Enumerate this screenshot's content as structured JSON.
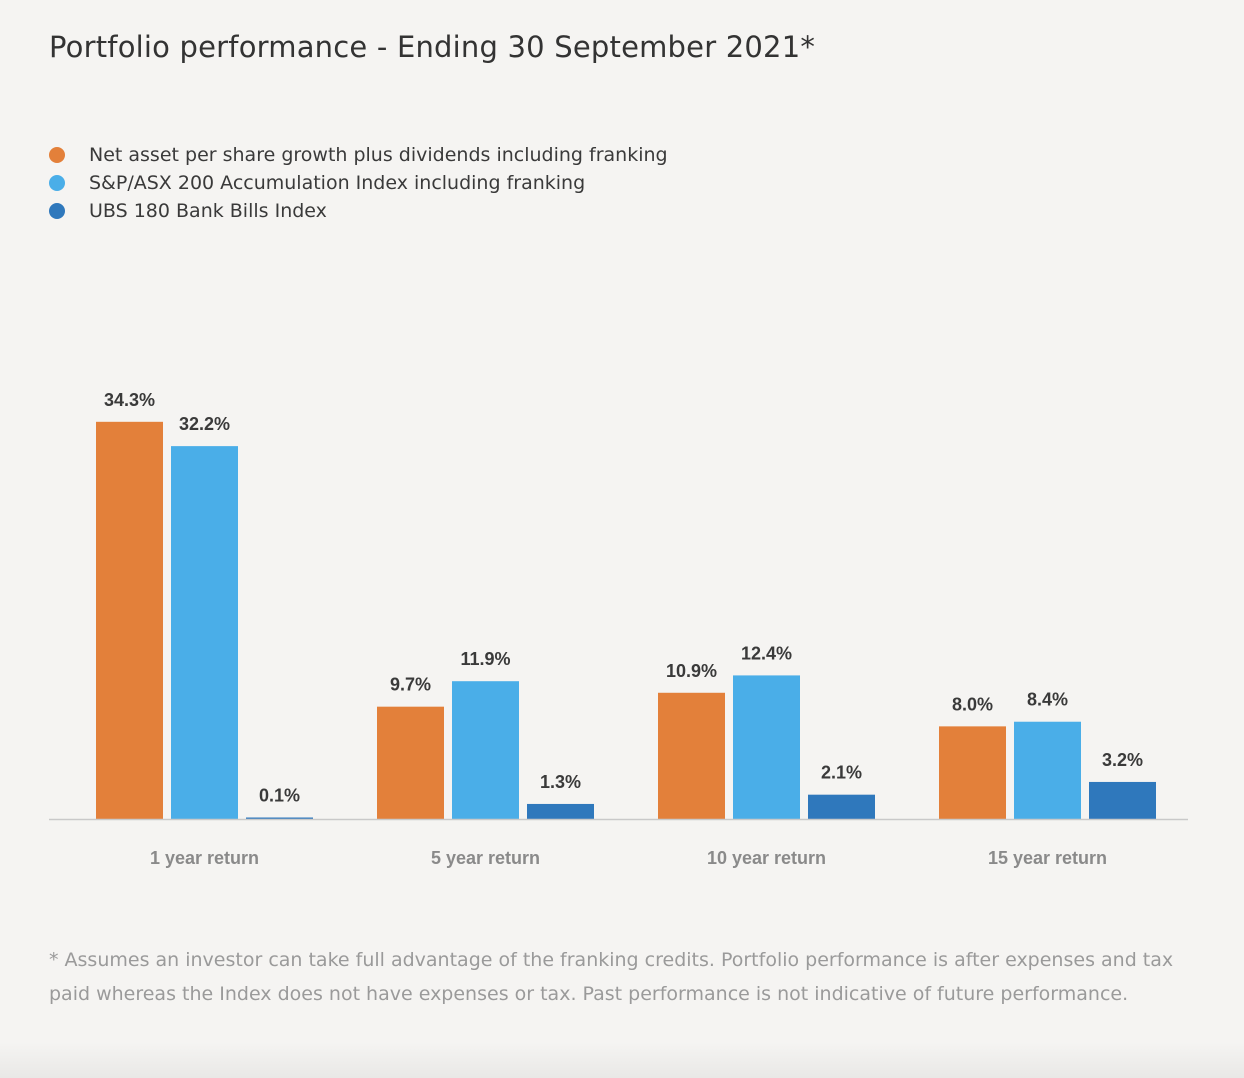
{
  "title": "Portfolio performance - Ending 30 September 2021*",
  "legend": [
    {
      "label": "Net asset per share growth plus dividends including franking",
      "color": "#e3803a"
    },
    {
      "label": "S&P/ASX 200 Accumulation Index including franking",
      "color": "#4aaee8"
    },
    {
      "label": "UBS 180 Bank Bills Index",
      "color": "#2f78bc"
    }
  ],
  "chart_data": {
    "type": "bar",
    "title": "Portfolio performance - Ending 30 September 2021*",
    "xlabel": "",
    "ylabel": "",
    "grid": false,
    "legend_position": "top-left",
    "ylim": [
      0,
      35
    ],
    "categories": [
      "1 year return",
      "5 year return",
      "10 year return",
      "15 year return"
    ],
    "series": [
      {
        "name": "Net asset per share growth plus dividends including franking",
        "color": "#e3803a",
        "values": [
          34.3,
          9.7,
          10.9,
          8.0
        ],
        "labels": [
          "34.3%",
          "9.7%",
          "10.9%",
          "8.0%"
        ]
      },
      {
        "name": "S&P/ASX 200 Accumulation Index including franking",
        "color": "#4aaee8",
        "values": [
          32.2,
          11.9,
          12.4,
          8.4
        ],
        "labels": [
          "32.2%",
          "11.9%",
          "12.4%",
          "8.4%"
        ]
      },
      {
        "name": "UBS 180 Bank Bills Index",
        "color": "#2f78bc",
        "values": [
          0.1,
          1.3,
          2.1,
          3.2
        ],
        "labels": [
          "0.1%",
          "1.3%",
          "2.1%",
          "3.2%"
        ]
      }
    ]
  },
  "footnote": "* Assumes an investor can take full advantage of the franking credits. Portfolio performance is after expenses and tax paid whereas the Index does not have expenses or tax. Past performance is not indicative of future performance."
}
